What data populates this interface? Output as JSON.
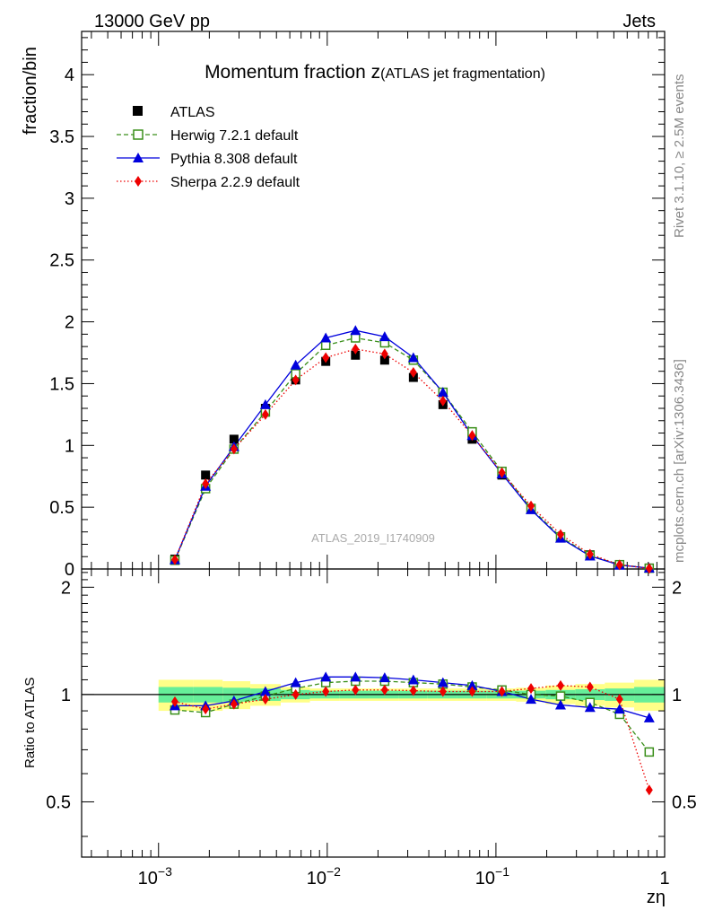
{
  "header": {
    "energy": "13000 GeV pp",
    "process": "Jets"
  },
  "side_labels": {
    "rivet": "Rivet 3.1.10, ≥ 2.5M events",
    "source": "mcplots.cern.ch [arXiv:1306.3436]"
  },
  "colors": {
    "atlas": "#000000",
    "herwig": "#3a8f1a",
    "pythia": "#0000dd",
    "sherpa": "#ee0000",
    "band_inner": "#66ee99",
    "band_outer": "#ffff88"
  },
  "chart_data": [
    {
      "type": "line",
      "title": "Momentum fraction z",
      "subtitle": "(ATLAS jet fragmentation)",
      "ylabel": "fraction/bin",
      "xscale": "log",
      "xlim": [
        0.00035,
        1.0
      ],
      "ylim": [
        0,
        4.35
      ],
      "yticks": [
        0,
        0.5,
        1,
        1.5,
        2,
        2.5,
        3,
        3.5,
        4
      ],
      "ytick_labels": [
        "0",
        "0.5",
        "1",
        "1.5",
        "2",
        "2.5",
        "3",
        "3.5",
        "4"
      ],
      "watermark": "ATLAS_2019_I1740909",
      "legend_position": "top-left",
      "x": [
        0.00125,
        0.0019,
        0.0028,
        0.0043,
        0.0065,
        0.0098,
        0.0147,
        0.0219,
        0.0324,
        0.0485,
        0.0723,
        0.1085,
        0.1614,
        0.2416,
        0.3611,
        0.5407,
        0.8102
      ],
      "series": [
        {
          "name": "ATLAS",
          "key": "atlas",
          "marker": "square-filled",
          "line": "none",
          "values": [
            0.08,
            0.76,
            1.05,
            1.3,
            1.53,
            1.68,
            1.73,
            1.69,
            1.55,
            1.33,
            1.05,
            0.76,
            0.49,
            0.26,
            0.115,
            0.035,
            0.008
          ]
        },
        {
          "name": "Herwig 7.2.1 default",
          "key": "herwig",
          "marker": "square-open",
          "line": "dashed",
          "values": [
            0.07,
            0.65,
            0.97,
            1.27,
            1.58,
            1.81,
            1.87,
            1.83,
            1.69,
            1.43,
            1.11,
            0.79,
            0.49,
            0.26,
            0.11,
            0.035,
            0.006
          ]
        },
        {
          "name": "Pythia 8.308 default",
          "key": "pythia",
          "marker": "triangle-filled",
          "line": "solid",
          "values": [
            0.075,
            0.67,
            0.99,
            1.33,
            1.65,
            1.87,
            1.93,
            1.88,
            1.71,
            1.43,
            1.08,
            0.77,
            0.48,
            0.25,
            0.105,
            0.032,
            0.007
          ]
        },
        {
          "name": "Sherpa 2.2.9 default",
          "key": "sherpa",
          "marker": "diamond-filled",
          "line": "dotted",
          "values": [
            0.075,
            0.69,
            0.97,
            1.25,
            1.53,
            1.71,
            1.78,
            1.74,
            1.59,
            1.36,
            1.08,
            0.78,
            0.51,
            0.28,
            0.12,
            0.034,
            0.0045
          ]
        }
      ]
    },
    {
      "type": "line",
      "ylabel": "Ratio to ATLAS",
      "xlabel": "zη",
      "xscale": "log",
      "xlim": [
        0.00035,
        1.0
      ],
      "ylim": [
        0.35,
        2.25
      ],
      "yticks": [
        0.5,
        1,
        2
      ],
      "ytick_labels": [
        "0.5",
        "1",
        "2"
      ],
      "xticks": [
        0.001,
        0.01,
        0.1,
        1
      ],
      "xtick_labels": [
        [
          "10",
          "−3"
        ],
        [
          "10",
          "−2"
        ],
        [
          "10",
          "−1"
        ],
        [
          "1",
          ""
        ]
      ],
      "reference_line": 1,
      "x": [
        0.00125,
        0.0019,
        0.0028,
        0.0043,
        0.0065,
        0.0098,
        0.0147,
        0.0219,
        0.0324,
        0.0485,
        0.0723,
        0.1085,
        0.1614,
        0.2416,
        0.3611,
        0.5407,
        0.8102
      ],
      "bin_edges": [
        0.001,
        0.0016,
        0.0024,
        0.0035,
        0.0053,
        0.0079,
        0.0118,
        0.0177,
        0.0264,
        0.0394,
        0.0588,
        0.0878,
        0.1318,
        0.197,
        0.2954,
        0.4418,
        0.66,
        1.0
      ],
      "uncertainty_bands": {
        "inner": [
          0.05,
          0.05,
          0.045,
          0.04,
          0.03,
          0.025,
          0.025,
          0.025,
          0.025,
          0.025,
          0.025,
          0.025,
          0.025,
          0.03,
          0.035,
          0.04,
          0.05
        ],
        "outer": [
          0.1,
          0.1,
          0.09,
          0.07,
          0.05,
          0.04,
          0.04,
          0.04,
          0.04,
          0.04,
          0.04,
          0.04,
          0.045,
          0.06,
          0.07,
          0.08,
          0.1
        ]
      },
      "series": [
        {
          "name": "Herwig 7.2.1 default",
          "key": "herwig",
          "marker": "square-open",
          "line": "dashed",
          "values": [
            0.905,
            0.89,
            0.94,
            0.99,
            1.04,
            1.08,
            1.09,
            1.09,
            1.08,
            1.07,
            1.05,
            1.03,
            1.0,
            0.99,
            0.95,
            0.88,
            0.69
          ]
        },
        {
          "name": "Pythia 8.308 default",
          "key": "pythia",
          "marker": "triangle-filled",
          "line": "solid",
          "values": [
            0.93,
            0.93,
            0.96,
            1.02,
            1.08,
            1.12,
            1.12,
            1.115,
            1.1,
            1.08,
            1.06,
            1.02,
            0.97,
            0.935,
            0.92,
            0.91,
            0.86
          ]
        },
        {
          "name": "Sherpa 2.2.9 default",
          "key": "sherpa",
          "marker": "diamond-filled",
          "line": "dotted",
          "values": [
            0.955,
            0.91,
            0.94,
            0.97,
            1.0,
            1.02,
            1.03,
            1.03,
            1.025,
            1.02,
            1.02,
            1.02,
            1.04,
            1.06,
            1.05,
            0.97,
            0.54
          ]
        }
      ]
    }
  ]
}
